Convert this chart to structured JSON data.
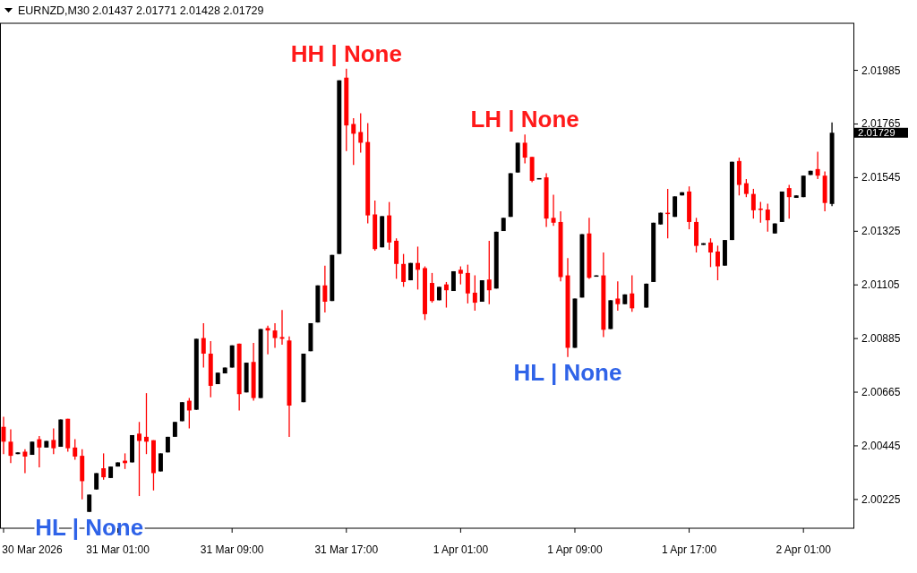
{
  "chart_data": {
    "type": "candlestick",
    "title": "EURNZD,M30 2.01437 2.01771 2.01428 2.01729",
    "x": [
      "2026-03-30T17:00",
      "2026-03-30T17:30",
      "2026-03-30T18:00",
      "2026-03-30T18:30",
      "2026-03-30T19:00",
      "2026-03-30T19:30",
      "2026-03-30T20:00",
      "2026-03-30T20:30",
      "2026-03-30T21:00",
      "2026-03-30T21:30",
      "2026-03-30T22:00",
      "2026-03-30T22:30",
      "2026-03-30T23:00",
      "2026-03-30T23:30",
      "2026-03-31T00:00",
      "2026-03-31T00:30",
      "2026-03-31T01:00",
      "2026-03-31T01:30",
      "2026-03-31T02:00",
      "2026-03-31T02:30",
      "2026-03-31T03:00",
      "2026-03-31T03:30",
      "2026-03-31T04:00",
      "2026-03-31T04:30",
      "2026-03-31T05:00",
      "2026-03-31T05:30",
      "2026-03-31T06:00",
      "2026-03-31T06:30",
      "2026-03-31T07:00",
      "2026-03-31T07:30",
      "2026-03-31T08:00",
      "2026-03-31T08:30",
      "2026-03-31T09:00",
      "2026-03-31T09:30",
      "2026-03-31T10:00",
      "2026-03-31T10:30",
      "2026-03-31T11:00",
      "2026-03-31T11:30",
      "2026-03-31T12:00",
      "2026-03-31T12:30",
      "2026-03-31T13:00",
      "2026-03-31T14:00",
      "2026-03-31T14:30",
      "2026-03-31T15:00",
      "2026-03-31T15:30",
      "2026-03-31T16:00",
      "2026-03-31T16:30",
      "2026-03-31T17:00",
      "2026-03-31T17:30",
      "2026-03-31T18:00",
      "2026-03-31T18:30",
      "2026-03-31T19:00",
      "2026-03-31T19:30",
      "2026-03-31T20:00",
      "2026-03-31T20:30",
      "2026-03-31T21:00",
      "2026-03-31T21:30",
      "2026-03-31T22:00",
      "2026-03-31T22:30",
      "2026-03-31T23:00",
      "2026-03-31T23:30",
      "2026-04-01T00:00",
      "2026-04-01T00:30",
      "2026-04-01T01:00",
      "2026-04-01T01:30",
      "2026-04-01T02:00",
      "2026-04-01T02:30",
      "2026-04-01T03:00",
      "2026-04-01T03:30",
      "2026-04-01T04:00",
      "2026-04-01T04:30",
      "2026-04-01T05:00",
      "2026-04-01T05:30",
      "2026-04-01T06:00",
      "2026-04-01T06:30",
      "2026-04-01T07:00",
      "2026-04-01T07:30",
      "2026-04-01T08:00",
      "2026-04-01T08:30",
      "2026-04-01T09:00",
      "2026-04-01T09:30",
      "2026-04-01T10:00",
      "2026-04-01T10:30",
      "2026-04-01T11:00",
      "2026-04-01T11:30",
      "2026-04-01T12:00",
      "2026-04-01T12:30",
      "2026-04-01T13:00",
      "2026-04-01T14:00",
      "2026-04-01T14:30",
      "2026-04-01T15:00",
      "2026-04-01T15:30",
      "2026-04-01T16:00",
      "2026-04-01T16:30",
      "2026-04-01T17:00",
      "2026-04-01T17:30",
      "2026-04-01T18:00",
      "2026-04-01T18:30",
      "2026-04-01T19:00",
      "2026-04-01T19:30",
      "2026-04-01T20:00",
      "2026-04-01T20:30",
      "2026-04-01T21:00",
      "2026-04-01T21:30",
      "2026-04-01T22:00",
      "2026-04-01T22:30",
      "2026-04-01T23:00",
      "2026-04-01T23:30",
      "2026-04-02T00:00",
      "2026-04-02T00:30",
      "2026-04-02T01:00",
      "2026-04-02T01:30",
      "2026-04-02T02:00",
      "2026-04-02T02:30",
      "2026-04-02T03:00"
    ],
    "ohlc": [
      [
        2.00523,
        2.00564,
        2.00411,
        2.00462
      ],
      [
        2.00462,
        2.00513,
        2.00374,
        2.00404
      ],
      [
        2.00411,
        2.00418,
        2.00411,
        2.00418
      ],
      [
        2.00421,
        2.00431,
        2.00333,
        2.00401
      ],
      [
        2.00408,
        2.00462,
        2.00408,
        2.00462
      ],
      [
        2.00472,
        2.00485,
        2.00357,
        2.00438
      ],
      [
        2.00438,
        2.00465,
        2.00438,
        2.00465
      ],
      [
        2.00469,
        2.00516,
        2.00411,
        2.00435
      ],
      [
        2.00441,
        2.00553,
        2.00441,
        2.00553
      ],
      [
        2.00556,
        2.00556,
        2.00421,
        2.00435
      ],
      [
        2.00438,
        2.00472,
        2.00388,
        2.00401
      ],
      [
        2.00404,
        2.00431,
        2.00225,
        2.003
      ],
      [
        2.00174,
        2.00245,
        2.00174,
        2.00245
      ],
      [
        2.00266,
        2.00333,
        2.00266,
        2.00333
      ],
      [
        2.00353,
        2.00414,
        2.00306,
        2.00316
      ],
      [
        2.00313,
        2.0036,
        2.00313,
        2.0036
      ],
      [
        2.0036,
        2.00377,
        2.0036,
        2.00377
      ],
      [
        2.00384,
        2.00414,
        2.0035,
        2.00374
      ],
      [
        2.00377,
        2.00489,
        2.00377,
        2.00489
      ],
      [
        2.00495,
        2.00543,
        2.00239,
        2.00465
      ],
      [
        2.00482,
        2.00661,
        2.00411,
        2.00462
      ],
      [
        2.00468,
        2.00468,
        2.00262,
        2.00333
      ],
      [
        2.0034,
        2.00414,
        2.0034,
        2.00414
      ],
      [
        2.00418,
        2.00482,
        2.00418,
        2.00482
      ],
      [
        2.00482,
        2.00543,
        2.00482,
        2.00543
      ],
      [
        2.00546,
        2.00624,
        2.00546,
        2.00624
      ],
      [
        2.0063,
        2.00641,
        2.00516,
        2.0059
      ],
      [
        2.00593,
        2.00884,
        2.00593,
        2.00884
      ],
      [
        2.00887,
        2.00948,
        2.00766,
        2.00823
      ],
      [
        2.00823,
        2.00874,
        2.00644,
        2.00691
      ],
      [
        2.00698,
        2.00745,
        2.00698,
        2.00745
      ],
      [
        2.00742,
        2.00766,
        2.00742,
        2.00766
      ],
      [
        2.00766,
        2.00857,
        2.00766,
        2.00857
      ],
      [
        2.00864,
        2.00864,
        2.0059,
        2.00657
      ],
      [
        2.00664,
        2.00786,
        2.00664,
        2.00786
      ],
      [
        2.00789,
        2.00867,
        2.0063,
        2.00641
      ],
      [
        2.00641,
        2.00924,
        2.00641,
        2.00924
      ],
      [
        2.00928,
        2.00938,
        2.0082,
        2.00918
      ],
      [
        2.00918,
        2.00948,
        2.00847,
        2.00887
      ],
      [
        2.00891,
        2.01002,
        2.0086,
        2.00884
      ],
      [
        2.00877,
        2.00894,
        2.00482,
        2.0061
      ],
      [
        2.00624,
        2.00823,
        2.00624,
        2.00823
      ],
      [
        2.00833,
        2.00948,
        2.00833,
        2.00948
      ],
      [
        2.00951,
        2.01103,
        2.00951,
        2.01103
      ],
      [
        2.01103,
        2.01184,
        2.00992,
        2.01036
      ],
      [
        2.01039,
        2.01228,
        2.01039,
        2.01228
      ],
      [
        2.01232,
        2.01944,
        2.01232,
        2.01944
      ],
      [
        2.01955,
        2.01992,
        2.01654,
        2.01759
      ],
      [
        2.01765,
        2.01789,
        2.01597,
        2.01725
      ],
      [
        2.01732,
        2.01809,
        2.01647,
        2.01688
      ],
      [
        2.01691,
        2.01769,
        2.01357,
        2.0139
      ],
      [
        2.01394,
        2.01451,
        2.01245,
        2.01252
      ],
      [
        2.01259,
        2.01387,
        2.01259,
        2.01387
      ],
      [
        2.0139,
        2.01445,
        2.01249,
        2.01279
      ],
      [
        2.01286,
        2.01296,
        2.0113,
        2.01191
      ],
      [
        2.01191,
        2.01232,
        2.01097,
        2.01117
      ],
      [
        2.01124,
        2.01195,
        2.01124,
        2.01195
      ],
      [
        2.01195,
        2.01262,
        2.01086,
        2.01167
      ],
      [
        2.01174,
        2.01181,
        2.00961,
        2.00985
      ],
      [
        2.01113,
        2.01154,
        2.01032,
        2.01039
      ],
      [
        2.01042,
        2.01097,
        2.01042,
        2.01097
      ],
      [
        2.01107,
        2.01117,
        2.01012,
        2.01083
      ],
      [
        2.0108,
        2.01161,
        2.0108,
        2.01161
      ],
      [
        2.01167,
        2.01181,
        2.01107,
        2.01151
      ],
      [
        2.01154,
        2.01188,
        2.01029,
        2.0107
      ],
      [
        2.01073,
        2.01144,
        2.00999,
        2.01032
      ],
      [
        2.01036,
        2.01124,
        2.01036,
        2.01124
      ],
      [
        2.01127,
        2.01286,
        2.01026,
        2.01083
      ],
      [
        2.0109,
        2.01323,
        2.0109,
        2.01323
      ],
      [
        2.01326,
        2.0138,
        2.01326,
        2.0138
      ],
      [
        2.01384,
        2.01563,
        2.01384,
        2.01563
      ],
      [
        2.01566,
        2.01688,
        2.01566,
        2.01688
      ],
      [
        2.01688,
        2.01722,
        2.01603,
        2.01627
      ],
      [
        2.0163,
        2.0163,
        2.01526,
        2.01532
      ],
      [
        2.0154,
        2.01543,
        2.0154,
        2.01543
      ],
      [
        2.01546,
        2.01563,
        2.01343,
        2.01377
      ],
      [
        2.0138,
        2.01475,
        2.01347,
        2.0136
      ],
      [
        2.01363,
        2.01407,
        2.0112,
        2.01137
      ],
      [
        2.01144,
        2.01215,
        2.00809,
        2.00847
      ],
      [
        2.00847,
        2.01049,
        2.00847,
        2.01049
      ],
      [
        2.01053,
        2.01313,
        2.01053,
        2.01313
      ],
      [
        2.01316,
        2.0138,
        2.0113,
        2.01134
      ],
      [
        2.01141,
        2.01144,
        2.01141,
        2.01144
      ],
      [
        2.01144,
        2.01238,
        2.00891,
        2.00921
      ],
      [
        2.00924,
        2.01042,
        2.00924,
        2.01042
      ],
      [
        2.01049,
        2.0112,
        2.00999,
        2.01026
      ],
      [
        2.01026,
        2.01066,
        2.01026,
        2.01066
      ],
      [
        2.0107,
        2.01144,
        2.00995,
        2.01009
      ],
      [
        2.01012,
        2.0111,
        2.01012,
        2.0111
      ],
      [
        2.01117,
        2.0136,
        2.01117,
        2.0136
      ],
      [
        2.01353,
        2.01401,
        2.01353,
        2.01401
      ],
      [
        2.01401,
        2.01499,
        2.01296,
        2.01397
      ],
      [
        2.01384,
        2.01468,
        2.01384,
        2.01468
      ],
      [
        2.01472,
        2.01485,
        2.01472,
        2.01485
      ],
      [
        2.01488,
        2.01509,
        2.01333,
        2.01363
      ],
      [
        2.01363,
        2.0138,
        2.01238,
        2.01265
      ],
      [
        2.01269,
        2.01276,
        2.01269,
        2.01276
      ],
      [
        2.01279,
        2.01296,
        2.01178,
        2.01238
      ],
      [
        2.01242,
        2.01266,
        2.01124,
        2.01181
      ],
      [
        2.01184,
        2.01289,
        2.01184,
        2.01289
      ],
      [
        2.01289,
        2.0161,
        2.01289,
        2.0161
      ],
      [
        2.01613,
        2.01627,
        2.01472,
        2.01515
      ],
      [
        2.01522,
        2.01539,
        2.01465,
        2.01478
      ],
      [
        2.01478,
        2.01499,
        2.01377,
        2.01411
      ],
      [
        2.01418,
        2.01445,
        2.0136,
        2.01414
      ],
      [
        2.01414,
        2.01438,
        2.01323,
        2.0137
      ],
      [
        2.01316,
        2.01357,
        2.01316,
        2.01357
      ],
      [
        2.01363,
        2.01488,
        2.01363,
        2.01488
      ],
      [
        2.01502,
        2.01515,
        2.01377,
        2.01465
      ],
      [
        2.01462,
        2.01472,
        2.01462,
        2.01472
      ],
      [
        2.01465,
        2.01553,
        2.01465,
        2.01553
      ],
      [
        2.01556,
        2.01573,
        2.01556,
        2.01573
      ],
      [
        2.0158,
        2.01651,
        2.01539,
        2.01553
      ],
      [
        2.01553,
        2.0157,
        2.01407,
        2.01441
      ],
      [
        2.01437,
        2.01771,
        2.01428,
        2.01729
      ]
    ],
    "xlim": [
      "2026-03-30T16:45",
      "2026-04-02T04:30"
    ],
    "xticks": [
      {
        "value": "2026-03-30T17:00",
        "label": "30 Mar 2026"
      },
      {
        "value": "2026-03-31T01:00",
        "label": "31 Mar 01:00"
      },
      {
        "value": "2026-03-31T09:00",
        "label": "31 Mar 09:00"
      },
      {
        "value": "2026-03-31T17:00",
        "label": "31 Mar 17:00"
      },
      {
        "value": "2026-04-01T01:00",
        "label": "1 Apr 01:00"
      },
      {
        "value": "2026-04-01T09:00",
        "label": "1 Apr 09:00"
      },
      {
        "value": "2026-04-01T17:00",
        "label": "1 Apr 17:00"
      },
      {
        "value": "2026-04-02T01:00",
        "label": "2 Apr 01:00"
      }
    ],
    "ylim": [
      2.00107,
      2.02178
    ],
    "yticks": [
      2.00225,
      2.00445,
      2.00665,
      2.00885,
      2.01105,
      2.01325,
      2.01545,
      2.01765,
      2.01985
    ],
    "annotations": [
      {
        "text": "2.01729",
        "x": "2026-04-02T03:00",
        "y": 2.01729
      },
      {
        "text": "HH | None",
        "x": "2026-03-31T17:00",
        "y": 2.01992
      },
      {
        "text": "LH | None",
        "x": "2026-04-01T05:30",
        "y": 2.01722
      },
      {
        "text": "HL | None",
        "x": "2026-04-01T08:30",
        "y": 2.00809
      },
      {
        "text": "HL | None",
        "x": "2026-03-30T23:00",
        "y": 2.00174
      }
    ]
  }
}
